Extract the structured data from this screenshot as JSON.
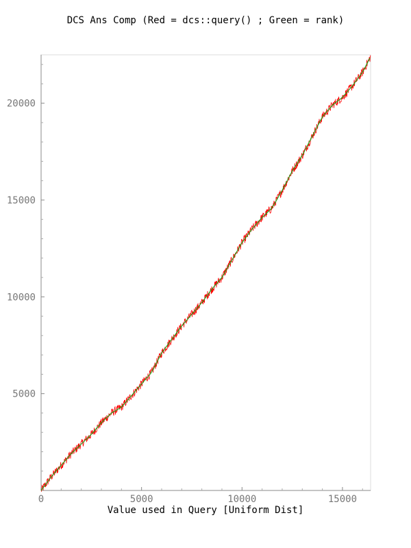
{
  "chart_data": {
    "type": "line",
    "title": "DCS Ans Comp (Red = dcs::query() ; Green = rank)",
    "xlabel": "Value used in Query [Uniform Dist]",
    "ylabel": "",
    "xlim": [
      0,
      16400
    ],
    "ylim": [
      0,
      22500
    ],
    "xticks": [
      0,
      5000,
      10000,
      15000
    ],
    "yticks": [
      5000,
      10000,
      15000,
      20000
    ],
    "xtick_labels": [
      "0",
      "5000",
      "10000",
      "15000"
    ],
    "ytick_labels": [
      "5000",
      "10000",
      "15000",
      "20000"
    ],
    "grid": false,
    "series": [
      {
        "name": "dcs::query()",
        "color": "#ff0000",
        "x": [
          0,
          500,
          1000,
          1500,
          2000,
          2500,
          3000,
          3500,
          4000,
          4500,
          5000,
          5500,
          6000,
          6500,
          7000,
          7500,
          8000,
          8500,
          9000,
          9500,
          10000,
          10500,
          11000,
          11500,
          12000,
          12500,
          13000,
          13500,
          14000,
          14500,
          15000,
          15500,
          16000,
          16400
        ],
        "y": [
          0,
          700,
          1300,
          1900,
          2400,
          2900,
          3500,
          4000,
          4300,
          4900,
          5500,
          6100,
          7100,
          7800,
          8500,
          9100,
          9700,
          10400,
          11000,
          11900,
          12800,
          13500,
          14100,
          14600,
          15500,
          16500,
          17300,
          18300,
          19300,
          19900,
          20300,
          20900,
          21600,
          22400
        ],
        "noise_amplitude": 220
      },
      {
        "name": "rank",
        "color": "#22aa22",
        "x": [
          0,
          500,
          1000,
          1500,
          2000,
          2500,
          3000,
          3500,
          4000,
          4500,
          5000,
          5500,
          6000,
          6500,
          7000,
          7500,
          8000,
          8500,
          9000,
          9500,
          10000,
          10500,
          11000,
          11500,
          12000,
          12500,
          13000,
          13500,
          14000,
          14500,
          15000,
          15500,
          16000,
          16400
        ],
        "y": [
          0,
          700,
          1300,
          1900,
          2400,
          2900,
          3500,
          4000,
          4300,
          4900,
          5500,
          6100,
          7100,
          7800,
          8500,
          9100,
          9700,
          10400,
          11000,
          11900,
          12800,
          13500,
          14100,
          14600,
          15500,
          16500,
          17300,
          18300,
          19300,
          19900,
          20300,
          20900,
          21600,
          22400
        ],
        "noise_amplitude": 0
      }
    ]
  }
}
